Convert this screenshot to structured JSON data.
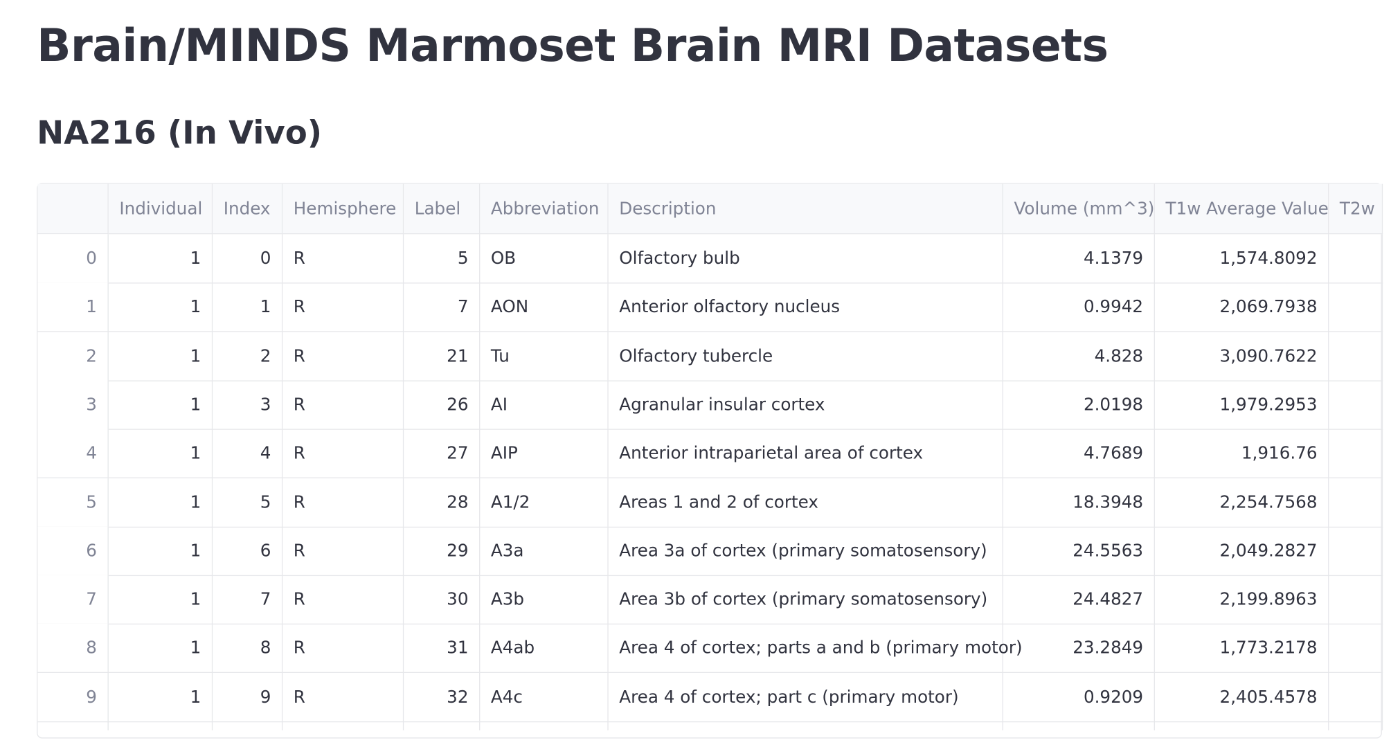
{
  "header": {
    "title": "Brain/MINDS Marmoset Brain MRI Datasets",
    "subtitle": "NA216 (In Vivo)"
  },
  "table": {
    "columns": [
      "Individual",
      "Index",
      "Hemisphere",
      "Label",
      "Abbreviation",
      "Description",
      "Volume (mm^3)",
      "T1w Average Value",
      "T2w"
    ],
    "rows": [
      [
        "0",
        "1",
        "0",
        "R",
        "5",
        "OB",
        "Olfactory bulb",
        "4.1379",
        "1,574.8092"
      ],
      [
        "1",
        "1",
        "1",
        "R",
        "7",
        "AON",
        "Anterior olfactory nucleus",
        "0.9942",
        "2,069.7938"
      ],
      [
        "2",
        "1",
        "2",
        "R",
        "21",
        "Tu",
        "Olfactory tubercle",
        "4.828",
        "3,090.7622"
      ],
      [
        "3",
        "1",
        "3",
        "R",
        "26",
        "AI",
        "Agranular insular cortex",
        "2.0198",
        "1,979.2953"
      ],
      [
        "4",
        "1",
        "4",
        "R",
        "27",
        "AIP",
        "Anterior intraparietal area of cortex",
        "4.7689",
        "1,916.76"
      ],
      [
        "5",
        "1",
        "5",
        "R",
        "28",
        "A1/2",
        "Areas 1 and 2 of cortex",
        "18.3948",
        "2,254.7568"
      ],
      [
        "6",
        "1",
        "6",
        "R",
        "29",
        "A3a",
        "Area 3a of cortex (primary somatosensory)",
        "24.5563",
        "2,049.2827"
      ],
      [
        "7",
        "1",
        "7",
        "R",
        "30",
        "A3b",
        "Area 3b of cortex (primary somatosensory)",
        "24.4827",
        "2,199.8963"
      ],
      [
        "8",
        "1",
        "8",
        "R",
        "31",
        "A4ab",
        "Area 4 of cortex; parts a and b (primary motor)",
        "23.2849",
        "1,773.2178"
      ],
      [
        "9",
        "1",
        "9",
        "R",
        "32",
        "A4c",
        "Area 4 of cortex; part c (primary motor)",
        "0.9209",
        "2,405.4578"
      ]
    ]
  }
}
